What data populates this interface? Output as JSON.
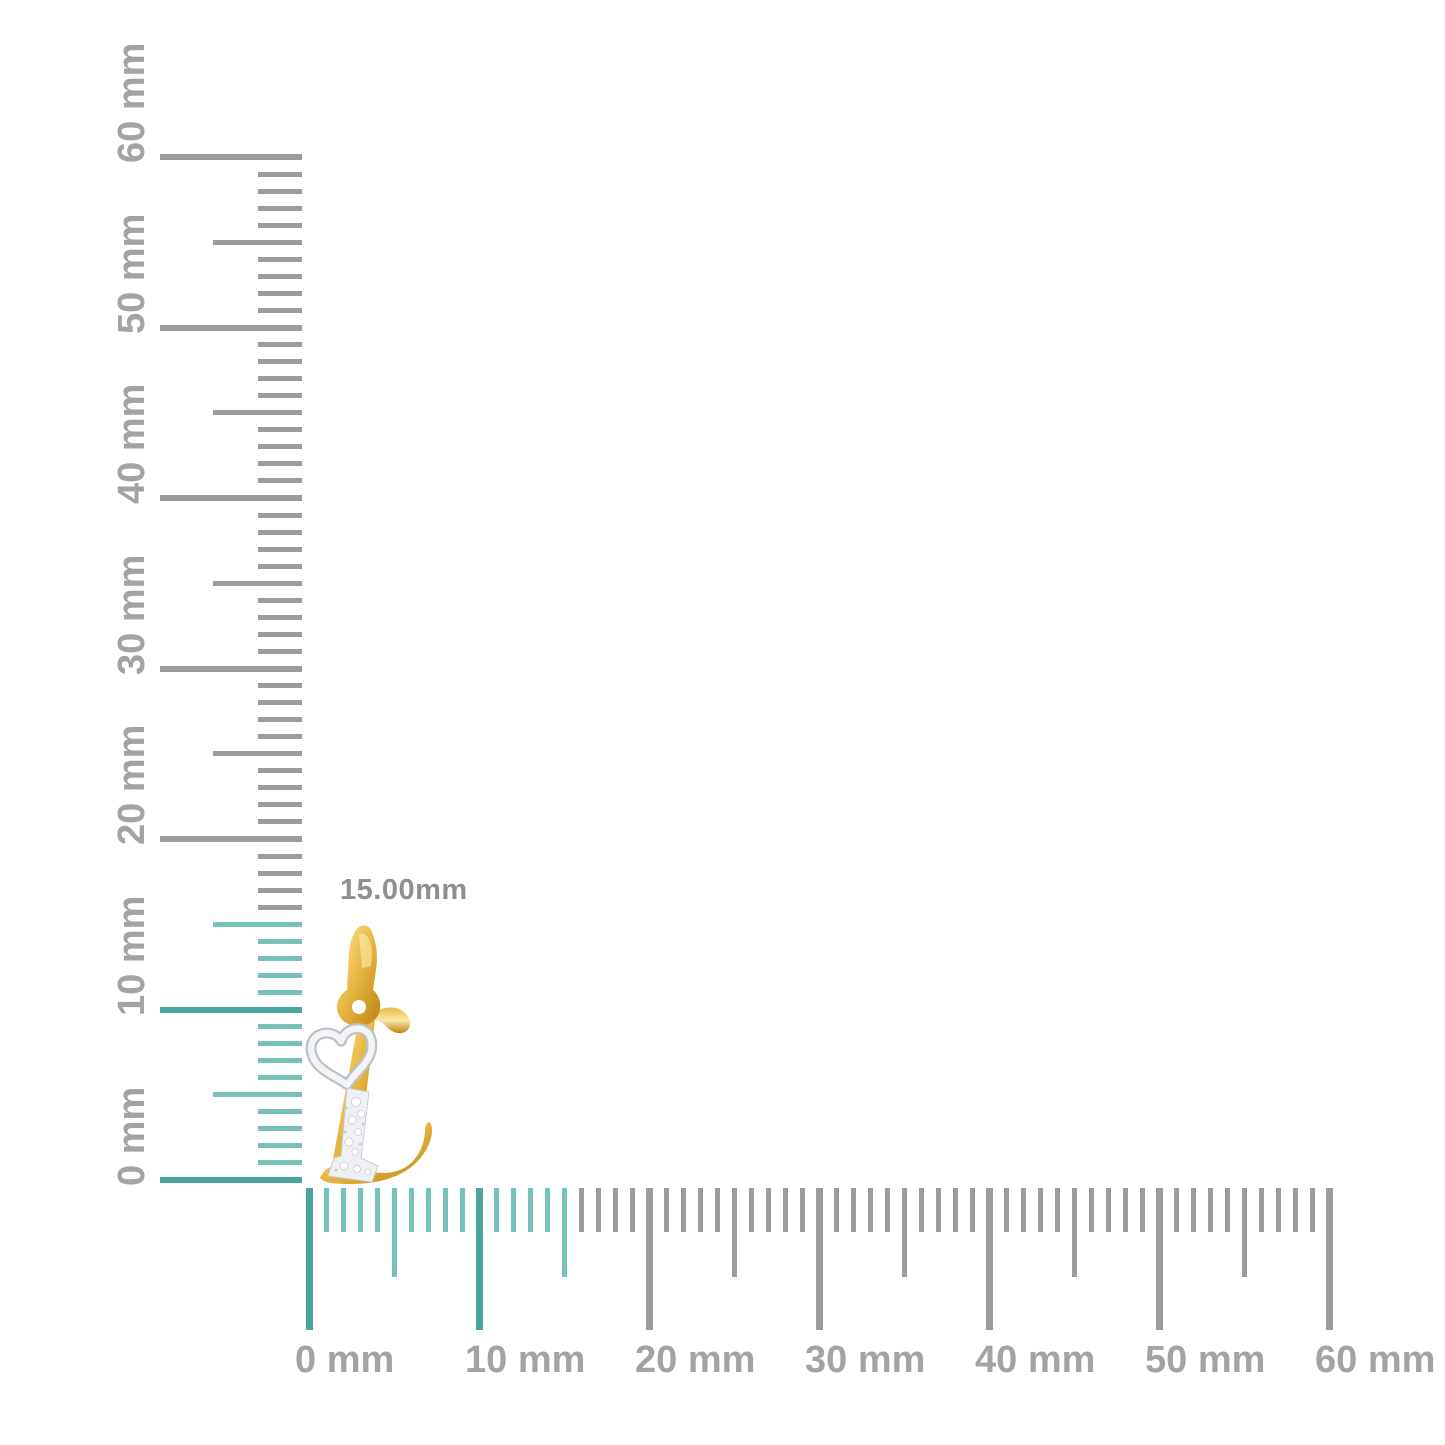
{
  "measurement": {
    "label": "15.00mm"
  },
  "rulers": {
    "unit": "mm",
    "vertical": {
      "min_mm": 0,
      "max_mm": 60,
      "major_step_mm": 10,
      "half_step_mm": 5,
      "minor_step_mm": 1,
      "highlighted_range_mm": [
        0,
        15
      ],
      "labels": [
        "0 mm",
        "10 mm",
        "20 mm",
        "30 mm",
        "40 mm",
        "50 mm",
        "60 mm"
      ]
    },
    "horizontal": {
      "min_mm": 0,
      "max_mm": 60,
      "major_step_mm": 10,
      "half_step_mm": 5,
      "minor_step_mm": 1,
      "highlighted_range_mm": [
        0,
        15
      ],
      "labels": [
        "0 mm",
        "10 mm",
        "20 mm",
        "30 mm",
        "40 mm",
        "50 mm",
        "60 mm"
      ]
    }
  },
  "pendant": {
    "description": "Yellow gold cursive initial L pendant with diamond pave stem and white gold open heart accent, gold bail at top",
    "height_label": "15.00mm"
  },
  "colors": {
    "tick_gray": "#9c9c9c",
    "label_gray": "#a3a3a3",
    "measurement_label_gray": "#8f8f8f",
    "tick_teal": "#76c1ba",
    "tick_teal_major": "#4aa69d",
    "gold_light": "#fbe9a6",
    "gold": "#eaba45",
    "gold_dark": "#bd8312",
    "white_metal": "#f3f4f6",
    "white_metal_edge": "#bdc1c9",
    "pave_fill": "#eef0f3",
    "pave_edge": "#c9ccd2"
  }
}
